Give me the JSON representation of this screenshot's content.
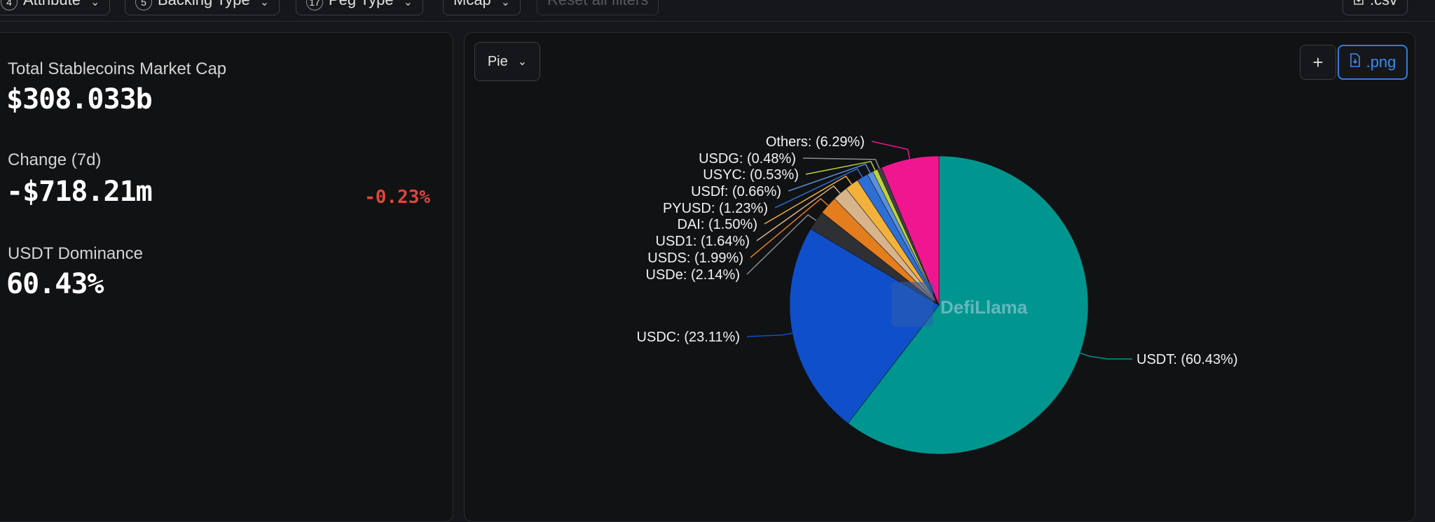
{
  "filters": [
    {
      "count": "4",
      "label": "Attribute"
    },
    {
      "count": "5",
      "label": "Backing Type"
    },
    {
      "count": "17",
      "label": "Peg Type"
    },
    {
      "count": "",
      "label": "Mcap"
    },
    {
      "count": "",
      "label": "Reset all filters"
    }
  ],
  "download_csv_label": ".csv",
  "stats": {
    "market_cap_label": "Total Stablecoins Market Cap",
    "market_cap_value": "$308.033b",
    "change_label": "Change (7d)",
    "change_value": "-$718.21m",
    "change_percent": "-0.23%",
    "dominance_label": "USDT Dominance",
    "dominance_value": "60.43%"
  },
  "chart_controls": {
    "chart_type": "Pie",
    "add_label": "+",
    "png_label": ".png"
  },
  "watermark": "DefiLlama",
  "colors": {
    "negative": "#e0463b",
    "accent": "#2f7de1"
  },
  "chart_data": {
    "type": "pie",
    "slices": [
      {
        "label": "USDT: (60.43%)",
        "name": "USDT",
        "value": 60.43,
        "color": "#00968f"
      },
      {
        "label": "USDC: (23.11%)",
        "name": "USDC",
        "value": 23.11,
        "color": "#0f4fca"
      },
      {
        "label": "USDe: (2.14%)",
        "name": "USDe",
        "value": 2.14,
        "color": "#2f3033"
      },
      {
        "label": "USDS: (1.99%)",
        "name": "USDS",
        "value": 1.99,
        "color": "#e37d1e"
      },
      {
        "label": "USD1: (1.64%)",
        "name": "USD1",
        "value": 1.64,
        "color": "#d7b48c"
      },
      {
        "label": "DAI: (1.50%)",
        "name": "DAI",
        "value": 1.5,
        "color": "#f2b13a"
      },
      {
        "label": "PYUSD: (1.23%)",
        "name": "PYUSD",
        "value": 1.23,
        "color": "#2e6fd6"
      },
      {
        "label": "USDf: (0.66%)",
        "name": "USDf",
        "value": 0.66,
        "color": "#5b8fdc"
      },
      {
        "label": "USYC: (0.53%)",
        "name": "USYC",
        "value": 0.53,
        "color": "#bcd43a"
      },
      {
        "label": "USDG: (0.48%)",
        "name": "USDG",
        "value": 0.48,
        "color": "#3f4145"
      },
      {
        "label": "Others: (6.29%)",
        "name": "Others",
        "value": 6.29,
        "color": "#f0168f"
      }
    ]
  }
}
